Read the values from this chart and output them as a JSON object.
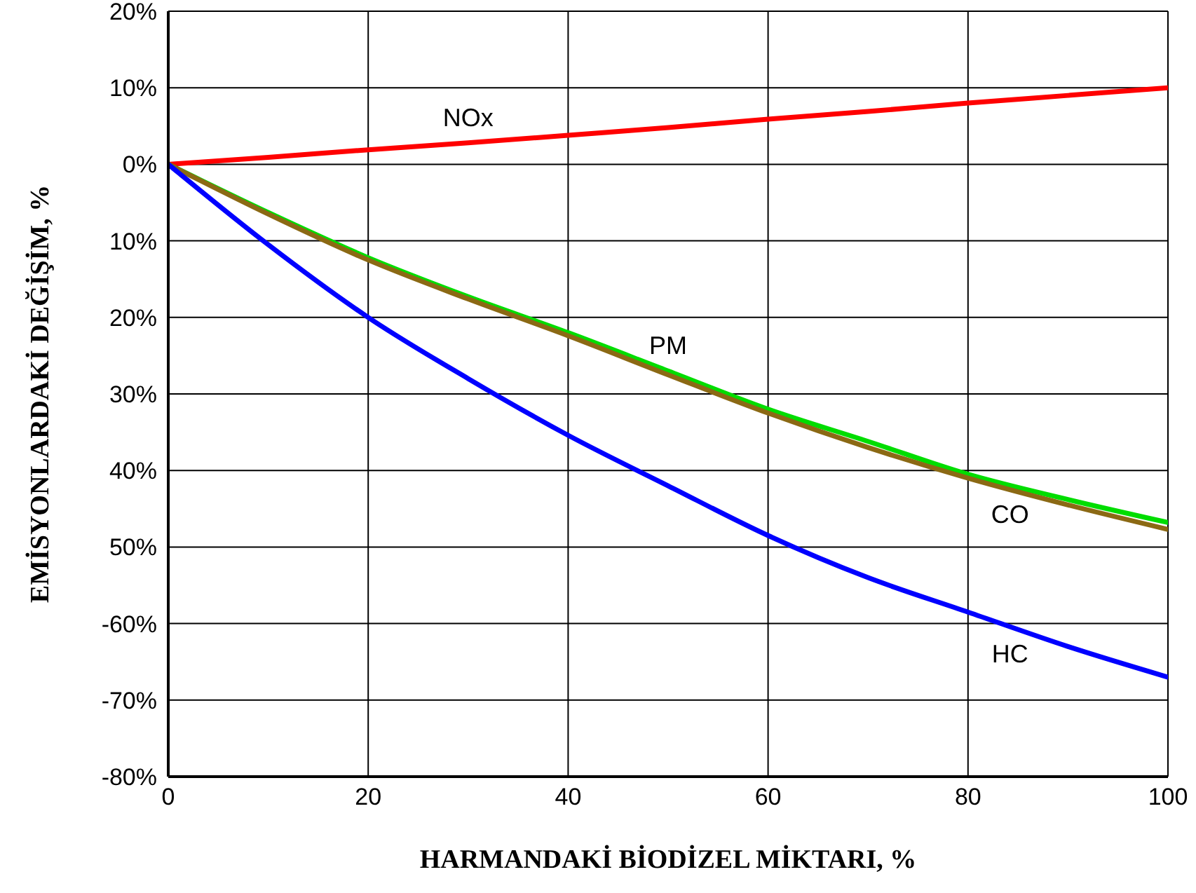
{
  "chart_data": {
    "type": "line",
    "xlabel": "HARMANDAKİ BİODİZEL MİKTARI, %",
    "ylabel": "EMİSYONLARDAKİ DEĞİŞİM, %",
    "x": [
      0,
      10,
      20,
      30,
      40,
      50,
      60,
      70,
      80,
      90,
      100
    ],
    "series": [
      {
        "name": "NOx",
        "color": "#ff0000",
        "values": [
          0,
          0.9,
          1.9,
          2.8,
          3.8,
          4.8,
          5.9,
          6.9,
          8.0,
          9.0,
          10.0
        ]
      },
      {
        "name": "PM",
        "color": "#00dd00",
        "values": [
          0,
          -6.3,
          -12.2,
          -17.3,
          -22,
          -27,
          -32,
          -36.2,
          -40.5,
          -43.8,
          -46.8
        ]
      },
      {
        "name": "CO",
        "color": "#8b6914",
        "values": [
          0,
          -6.5,
          -12.5,
          -17.6,
          -22.4,
          -27.5,
          -32.5,
          -37,
          -41,
          -44.5,
          -47.7
        ]
      },
      {
        "name": "HC",
        "color": "#0000ff",
        "values": [
          0,
          -10.5,
          -20,
          -28,
          -35.4,
          -42,
          -48.5,
          -54,
          -58.5,
          -63,
          -67
        ]
      }
    ],
    "xlim": [
      0,
      100
    ],
    "xticks": [
      0,
      20,
      40,
      60,
      80,
      100
    ],
    "ylim": [
      -80,
      20
    ],
    "yticks": [
      {
        "value": 20,
        "label": "20%"
      },
      {
        "value": 10,
        "label": "10%"
      },
      {
        "value": 0,
        "label": "0%"
      },
      {
        "value": -10,
        "label": "10%"
      },
      {
        "value": -20,
        "label": "20%"
      },
      {
        "value": -30,
        "label": "30%"
      },
      {
        "value": -40,
        "label": "40%"
      },
      {
        "value": -50,
        "label": "50%"
      },
      {
        "value": -60,
        "label": "-60%"
      },
      {
        "value": -70,
        "label": "-70%"
      },
      {
        "value": -80,
        "label": "-80%"
      }
    ],
    "grid": true,
    "legend": false,
    "marker": "none",
    "line_style": "solid"
  }
}
